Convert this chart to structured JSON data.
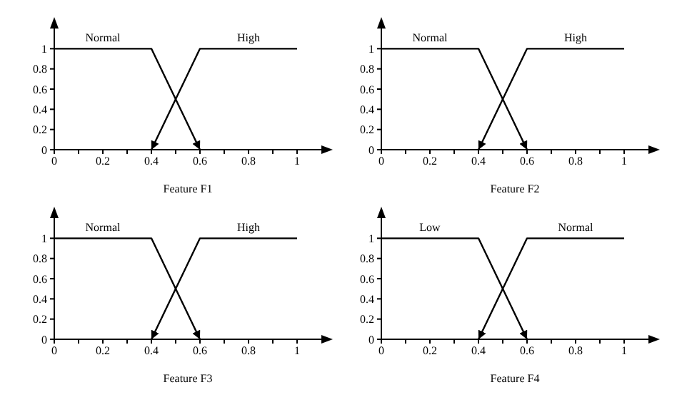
{
  "chart_data": [
    {
      "type": "line",
      "xlabel": "Feature F1",
      "xlim": [
        0,
        1.1
      ],
      "xticks": [
        0,
        {
          "value": 0.1,
          "label": null
        },
        0.2,
        {
          "value": 0.3,
          "label": null
        },
        0.4,
        {
          "value": 0.5,
          "label": null
        },
        0.6,
        {
          "value": 0.7,
          "label": null
        },
        0.8,
        {
          "value": 0.9,
          "label": null
        },
        1
      ],
      "ylim": [
        0,
        1.2
      ],
      "yticks": [
        0,
        0.2,
        0.4,
        0.6,
        0.8,
        1
      ],
      "marker": "none",
      "series": [
        {
          "name": "Normal",
          "color": "#000000",
          "x": [
            0,
            0.4,
            0.6
          ],
          "values": [
            1,
            1,
            0
          ]
        },
        {
          "name": "High",
          "color": "#000000",
          "x": [
            0.4,
            0.6,
            1
          ],
          "values": [
            0,
            1,
            1
          ]
        }
      ]
    },
    {
      "type": "line",
      "xlabel": "Feature F2",
      "xlim": [
        0,
        1.1
      ],
      "xticks": [
        0,
        {
          "value": 0.1,
          "label": null
        },
        0.2,
        {
          "value": 0.3,
          "label": null
        },
        0.4,
        {
          "value": 0.5,
          "label": null
        },
        0.6,
        {
          "value": 0.7,
          "label": null
        },
        0.8,
        {
          "value": 0.9,
          "label": null
        },
        1
      ],
      "ylim": [
        0,
        1.2
      ],
      "yticks": [
        0,
        0.2,
        0.4,
        0.6,
        0.8,
        1
      ],
      "marker": "none",
      "series": [
        {
          "name": "Normal",
          "color": "#000000",
          "x": [
            0,
            0.4,
            0.6
          ],
          "values": [
            1,
            1,
            0
          ]
        },
        {
          "name": "High",
          "color": "#000000",
          "x": [
            0.4,
            0.6,
            1
          ],
          "values": [
            0,
            1,
            1
          ]
        }
      ]
    },
    {
      "type": "line",
      "xlabel": "Feature F3",
      "xlim": [
        0,
        1.1
      ],
      "xticks": [
        0,
        {
          "value": 0.1,
          "label": null
        },
        0.2,
        {
          "value": 0.3,
          "label": null
        },
        0.4,
        {
          "value": 0.5,
          "label": null
        },
        0.6,
        {
          "value": 0.7,
          "label": null
        },
        0.8,
        {
          "value": 0.9,
          "label": null
        },
        1
      ],
      "ylim": [
        0,
        1.2
      ],
      "yticks": [
        0,
        0.2,
        0.4,
        0.6,
        0.8,
        1
      ],
      "marker": "none",
      "series": [
        {
          "name": "Normal",
          "color": "#000000",
          "x": [
            0,
            0.4,
            0.6
          ],
          "values": [
            1,
            1,
            0
          ]
        },
        {
          "name": "High",
          "color": "#000000",
          "x": [
            0.4,
            0.6,
            1
          ],
          "values": [
            0,
            1,
            1
          ]
        }
      ]
    },
    {
      "type": "line",
      "xlabel": "Feature F4",
      "xlim": [
        0,
        1.1
      ],
      "xticks": [
        0,
        {
          "value": 0.1,
          "label": null
        },
        0.2,
        {
          "value": 0.3,
          "label": null
        },
        0.4,
        {
          "value": 0.5,
          "label": null
        },
        0.6,
        {
          "value": 0.7,
          "label": null
        },
        0.8,
        {
          "value": 0.9,
          "label": null
        },
        1
      ],
      "ylim": [
        0,
        1.2
      ],
      "yticks": [
        0,
        0.2,
        0.4,
        0.6,
        0.8,
        1
      ],
      "marker": "none",
      "series": [
        {
          "name": "Low",
          "color": "#000000",
          "x": [
            0,
            0.4,
            0.6
          ],
          "values": [
            1,
            1,
            0
          ]
        },
        {
          "name": "Normal",
          "color": "#000000",
          "x": [
            0.4,
            0.6,
            1
          ],
          "values": [
            0,
            1,
            1
          ]
        }
      ]
    }
  ]
}
